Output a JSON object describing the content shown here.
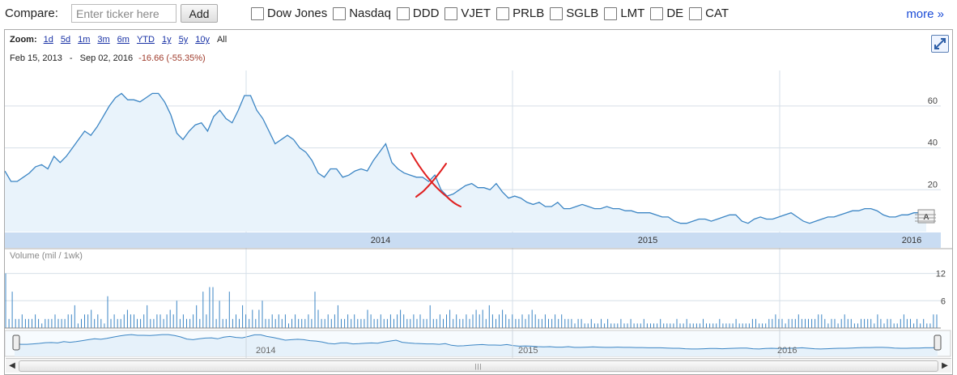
{
  "compare": {
    "label": "Compare:",
    "placeholder": "Enter ticker here",
    "add_label": "Add",
    "items": [
      "Dow Jones",
      "Nasdaq",
      "DDD",
      "VJET",
      "PRLB",
      "SGLB",
      "LMT",
      "DE",
      "CAT"
    ],
    "more_label": "more »"
  },
  "zoom": {
    "title": "Zoom:",
    "options": [
      "1d",
      "5d",
      "1m",
      "3m",
      "6m",
      "YTD",
      "1y",
      "5y",
      "10y"
    ],
    "selected": "All"
  },
  "range": {
    "start": "Feb 15, 2013",
    "separator": "-",
    "end": "Sep 02, 2016",
    "change": "-16.66 (-55.35%)"
  },
  "colors": {
    "line": "#3b85c4",
    "fill": "#e9f3fb",
    "grid": "#d6dfe8",
    "axis_band": "#c9dcf2",
    "annotation": "#e02020"
  },
  "volume_label": "Volume (mil / 1wk)",
  "annotation_marker": "A",
  "scroll_grip": "|||",
  "chart_data": [
    {
      "type": "area",
      "title": "",
      "x_tick_labels": [
        "2014",
        "2015",
        "2016"
      ],
      "y_tick_labels": [
        "20",
        "40",
        "60"
      ],
      "ylim": [
        0,
        77
      ],
      "grid": true,
      "series": [
        {
          "values": [
            29,
            24,
            24,
            26,
            28,
            31,
            32,
            30,
            36,
            33,
            36,
            40,
            44,
            48,
            46,
            50,
            55,
            60,
            64,
            66,
            63,
            63,
            62,
            64,
            66,
            66,
            62,
            56,
            47,
            44,
            48,
            51,
            52,
            48,
            55,
            58,
            54,
            52,
            58,
            65,
            65,
            58,
            54,
            48,
            42,
            44,
            46,
            44,
            40,
            38,
            34,
            28,
            26,
            30,
            30,
            26,
            27,
            29,
            30,
            29,
            34,
            38,
            42,
            33,
            30,
            28,
            27,
            26,
            26,
            24,
            27,
            20,
            17,
            18,
            20,
            22,
            23,
            21,
            21,
            20,
            23,
            19,
            16,
            17,
            16,
            14,
            13,
            14,
            12,
            12,
            14,
            11,
            11,
            12,
            13,
            12,
            11,
            11,
            12,
            11,
            11,
            10,
            10,
            9,
            9,
            9,
            8,
            7,
            7,
            5,
            4,
            4,
            5,
            6,
            6,
            5,
            6,
            7,
            8,
            8,
            5,
            4,
            6,
            7,
            6,
            6,
            7,
            8,
            9,
            7,
            5,
            4,
            5,
            6,
            7,
            7,
            8,
            9,
            10,
            10,
            11,
            11,
            10,
            8,
            7,
            7,
            8,
            8,
            9,
            9,
            10
          ]
        }
      ]
    },
    {
      "type": "bar",
      "title": "",
      "ylabel": "Volume (mil / 1wk)",
      "y_tick_labels": [
        "6",
        "12"
      ],
      "ylim": [
        0,
        13
      ],
      "series": [
        {
          "values": [
            12,
            2,
            8,
            2,
            2,
            3,
            2,
            2,
            2,
            3,
            2,
            1,
            2,
            2,
            2,
            3,
            2,
            2,
            2,
            3,
            3,
            5,
            1,
            2,
            3,
            3,
            4,
            2,
            3,
            2,
            1,
            7,
            2,
            3,
            2,
            2,
            3,
            4,
            3,
            3,
            2,
            2,
            3,
            5,
            2,
            2,
            3,
            3,
            2,
            3,
            4,
            3,
            6,
            2,
            3,
            2,
            2,
            3,
            5,
            2,
            8,
            3,
            9,
            9,
            2,
            6,
            2,
            2,
            8,
            2,
            3,
            2,
            5,
            3,
            2,
            4,
            2,
            4,
            6,
            2,
            2,
            3,
            2,
            3,
            2,
            3,
            1,
            2,
            3,
            2,
            2,
            2,
            3,
            2,
            8,
            4,
            2,
            2,
            3,
            2,
            3,
            5,
            2,
            2,
            3,
            2,
            3,
            2,
            2,
            2,
            4,
            3,
            2,
            2,
            3,
            2,
            2,
            3,
            2,
            3,
            4,
            3,
            2,
            2,
            3,
            2,
            3,
            2,
            2,
            5,
            2,
            2,
            3,
            2,
            3,
            4,
            2,
            3,
            2,
            2,
            3,
            2,
            3,
            4,
            3,
            4,
            2,
            5,
            3,
            2,
            3,
            4,
            3,
            2,
            3,
            2,
            2,
            3,
            2,
            3,
            4,
            3,
            2,
            2,
            3,
            2,
            2,
            3,
            2,
            3,
            2,
            2,
            2,
            1,
            2,
            2,
            1,
            1,
            2,
            1,
            1,
            2,
            1,
            2,
            1,
            1,
            1,
            2,
            1,
            1,
            2,
            1,
            1,
            1,
            2,
            1,
            1,
            1,
            1,
            2,
            1,
            1,
            1,
            1,
            2,
            1,
            1,
            2,
            1,
            1,
            1,
            1,
            2,
            1,
            1,
            1,
            1,
            2,
            1,
            1,
            1,
            1,
            2,
            1,
            1,
            1,
            1,
            2,
            2,
            1,
            1,
            1,
            2,
            2,
            3,
            2,
            2,
            1,
            2,
            2,
            2,
            3,
            2,
            2,
            2,
            2,
            2,
            3,
            3,
            2,
            1,
            2,
            2,
            1,
            2,
            3,
            2,
            2,
            1,
            1,
            2,
            2,
            2,
            2,
            1,
            3,
            2,
            1,
            2,
            2,
            1,
            1,
            2,
            3,
            2,
            2,
            1,
            2,
            1,
            2,
            1,
            1,
            3,
            3
          ]
        }
      ]
    },
    {
      "type": "line",
      "title": "",
      "x_tick_labels": [
        "2014",
        "2015",
        "2016"
      ]
    }
  ]
}
